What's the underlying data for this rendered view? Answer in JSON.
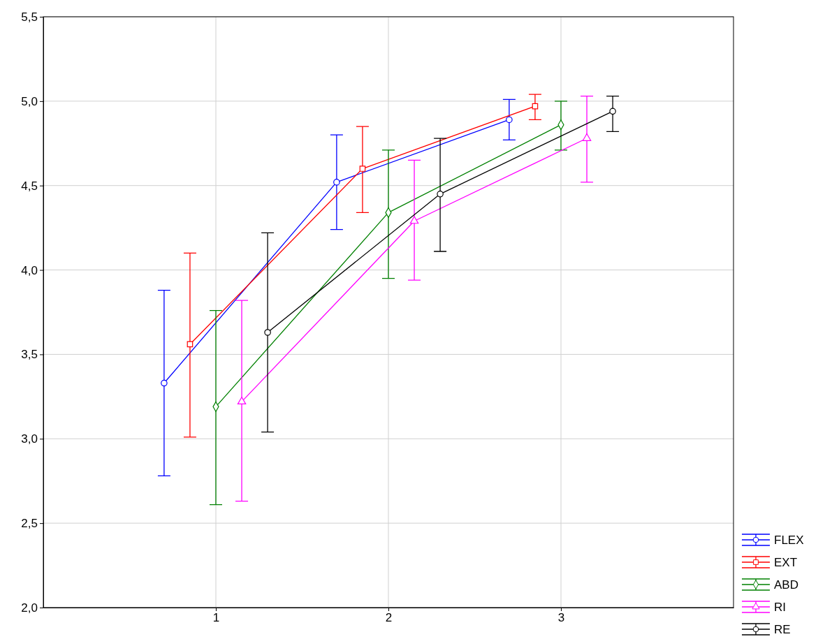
{
  "chart_data": {
    "type": "line",
    "xlim": [
      0,
      4
    ],
    "xticks": [
      1,
      2,
      3
    ],
    "ylim": [
      2,
      5.5
    ],
    "yticks": [
      {
        "value": 2,
        "label": "2,0"
      },
      {
        "value": 2.5,
        "label": "2,5"
      },
      {
        "value": 3,
        "label": "3,0"
      },
      {
        "value": 3.5,
        "label": "3,5"
      },
      {
        "value": 4,
        "label": "4,0"
      },
      {
        "value": 4.5,
        "label": "4,5"
      },
      {
        "value": 5,
        "label": "5,0"
      },
      {
        "value": 5.5,
        "label": "5,5"
      }
    ],
    "grid": true,
    "legend": "bottom right",
    "line_style": "solid",
    "series": [
      {
        "name": "FLEX",
        "color": "#0000ff",
        "marker": "circle",
        "x": [
          0.7,
          1.7,
          2.7
        ],
        "values": [
          3.33,
          4.52,
          4.89
        ],
        "errors": [
          [
            2.78,
            3.88
          ],
          [
            4.24,
            4.8
          ],
          [
            4.77,
            5.01
          ]
        ]
      },
      {
        "name": "EXT",
        "color": "#ff0000",
        "marker": "square",
        "x": [
          0.85,
          1.85,
          2.85
        ],
        "values": [
          3.56,
          4.6,
          4.97
        ],
        "errors": [
          [
            3.01,
            4.1
          ],
          [
            4.34,
            4.85
          ],
          [
            4.89,
            5.04
          ]
        ]
      },
      {
        "name": "ABD",
        "color": "#008000",
        "marker": "diamond",
        "x": [
          1,
          2,
          3
        ],
        "values": [
          3.19,
          4.34,
          4.86
        ],
        "errors": [
          [
            2.61,
            3.76
          ],
          [
            3.95,
            4.71
          ],
          [
            4.71,
            5.0
          ]
        ]
      },
      {
        "name": "RI",
        "color": "#ff00ff",
        "marker": "triangle",
        "x": [
          1.15,
          2.15,
          3.15
        ],
        "values": [
          3.22,
          4.29,
          4.78
        ],
        "errors": [
          [
            2.63,
            3.82
          ],
          [
            3.94,
            4.65
          ],
          [
            4.52,
            5.03
          ]
        ]
      },
      {
        "name": "RE",
        "color": "#000000",
        "marker": "circle",
        "x": [
          1.3,
          2.3,
          3.3
        ],
        "values": [
          3.63,
          4.45,
          4.94
        ],
        "errors": [
          [
            3.04,
            4.22
          ],
          [
            4.11,
            4.78
          ],
          [
            4.82,
            5.03
          ]
        ]
      }
    ]
  }
}
